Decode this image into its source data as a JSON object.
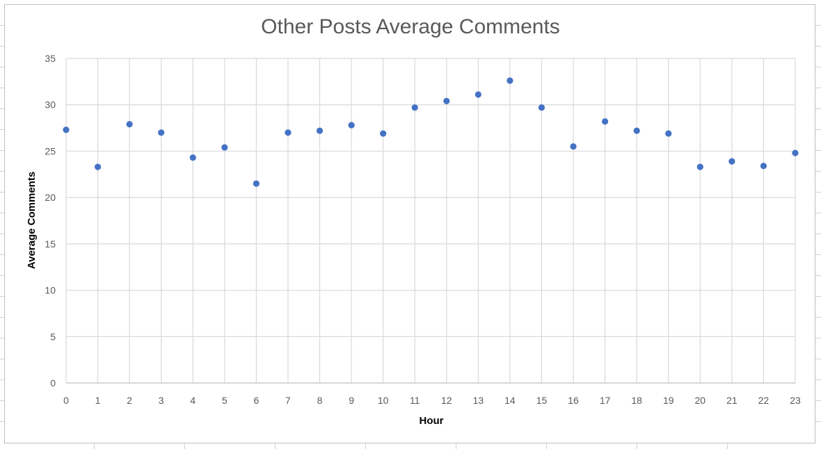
{
  "chart_data": {
    "type": "scatter",
    "title": "Other Posts Average Comments",
    "xlabel": "Hour",
    "ylabel": "Average Comments",
    "xlim": [
      0,
      23
    ],
    "ylim": [
      0,
      35
    ],
    "x_ticks": [
      "0",
      "1",
      "2",
      "3",
      "4",
      "5",
      "6",
      "7",
      "8",
      "9",
      "10",
      "11",
      "12",
      "13",
      "14",
      "15",
      "16",
      "17",
      "18",
      "19",
      "20",
      "21",
      "22",
      "23"
    ],
    "y_ticks": [
      "0",
      "5",
      "10",
      "15",
      "20",
      "25",
      "30",
      "35"
    ],
    "grid": true,
    "legend": "none",
    "marker_color": "#4472c4",
    "series": [
      {
        "x": [
          0,
          1,
          2,
          3,
          4,
          5,
          6,
          7,
          8,
          9,
          10,
          11,
          12,
          13,
          14,
          15,
          16,
          17,
          18,
          19,
          20,
          21,
          22,
          23
        ],
        "y": [
          27.3,
          23.3,
          27.9,
          27.0,
          24.3,
          25.4,
          21.5,
          27.0,
          27.2,
          27.8,
          26.9,
          29.7,
          30.4,
          31.1,
          32.6,
          29.7,
          25.5,
          28.2,
          27.2,
          26.9,
          23.3,
          23.9,
          23.4,
          24.8
        ]
      }
    ]
  }
}
